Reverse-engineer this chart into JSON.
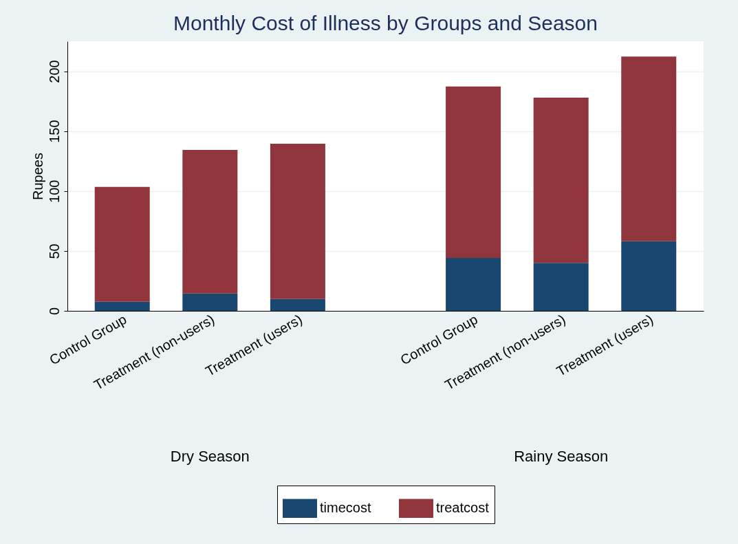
{
  "chart_data": {
    "type": "bar",
    "title": "Monthly Cost of Illness by Groups and Season",
    "ylabel": "Rupees",
    "categories": [
      "Control Group",
      "Treatment (non-users)",
      "Treatment (users)",
      null,
      "Control Group",
      "Treatment (non-users)",
      "Treatment (users)"
    ],
    "series": [
      {
        "name": "timecost",
        "color": "#1a476f",
        "values": [
          7.6,
          14.5,
          9.9,
          null,
          44.2,
          40.1,
          58.1
        ]
      },
      {
        "name": "treatcost",
        "color": "#90353b",
        "values": [
          95.9,
          119.8,
          129.6,
          null,
          143.0,
          137.8,
          154.1
        ]
      }
    ],
    "stacked": true,
    "ylim": [
      0,
      225
    ],
    "yticks": [
      0,
      50,
      100,
      150,
      200
    ],
    "grid": "y",
    "legend": "bottom",
    "annotations": [
      "Dry Season",
      "Rainy Season"
    ]
  }
}
